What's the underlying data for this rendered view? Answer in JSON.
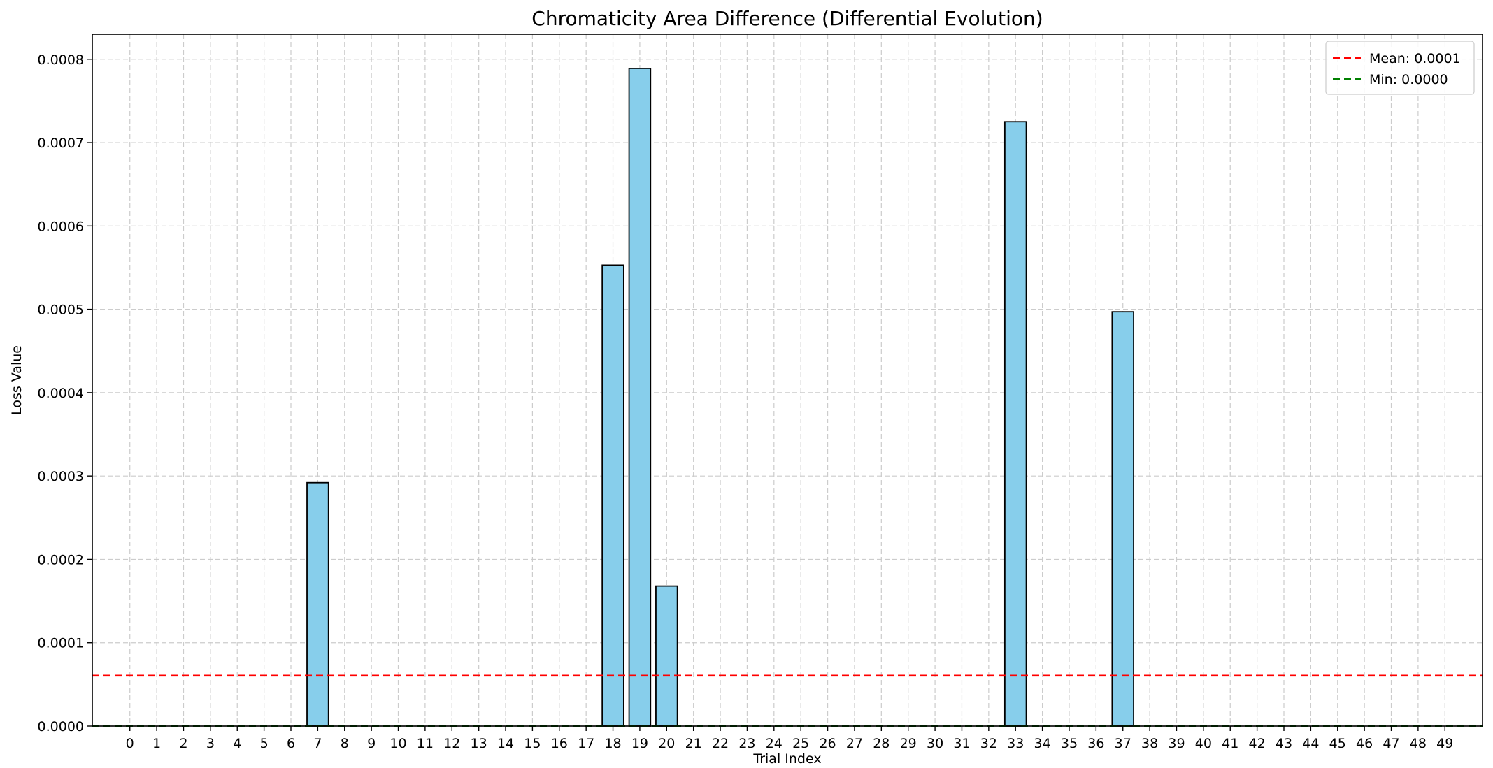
{
  "chart_data": {
    "type": "bar",
    "title": "Chromaticity Area Difference (Differential Evolution)",
    "xlabel": "Trial Index",
    "ylabel": "Loss Value",
    "categories": [
      "0",
      "1",
      "2",
      "3",
      "4",
      "5",
      "6",
      "7",
      "8",
      "9",
      "10",
      "11",
      "12",
      "13",
      "14",
      "15",
      "16",
      "17",
      "18",
      "19",
      "20",
      "21",
      "22",
      "23",
      "24",
      "25",
      "26",
      "27",
      "28",
      "29",
      "30",
      "31",
      "32",
      "33",
      "34",
      "35",
      "36",
      "37",
      "38",
      "39",
      "40",
      "41",
      "42",
      "43",
      "44",
      "45",
      "46",
      "47",
      "48",
      "49"
    ],
    "values": [
      0,
      0,
      0,
      0,
      0,
      0,
      0,
      0.000292,
      0,
      0,
      0,
      0,
      0,
      0,
      0,
      0,
      0,
      0,
      0.000553,
      0.000789,
      0.000168,
      0,
      0,
      0,
      0,
      0,
      0,
      0,
      0,
      0,
      0,
      0,
      0,
      0.000725,
      0,
      0,
      0,
      0.000497,
      0,
      0,
      0,
      0,
      0,
      0,
      0,
      0,
      0,
      0,
      0,
      0
    ],
    "ylim": [
      0,
      0.00083
    ],
    "yticks": [
      {
        "value": 0,
        "label": "0.0000"
      },
      {
        "value": 0.0001,
        "label": "0.0001"
      },
      {
        "value": 0.0002,
        "label": "0.0002"
      },
      {
        "value": 0.0003,
        "label": "0.0003"
      },
      {
        "value": 0.0004,
        "label": "0.0004"
      },
      {
        "value": 0.0005,
        "label": "0.0005"
      },
      {
        "value": 0.0006,
        "label": "0.0006"
      },
      {
        "value": 0.0007,
        "label": "0.0007"
      },
      {
        "value": 0.0008,
        "label": "0.0008"
      }
    ],
    "grid": true,
    "bar_color": "#87ceeb",
    "bar_edge_color": "#000000",
    "reference_lines": [
      {
        "label": "Mean: 0.0001",
        "value": 6.05e-05,
        "color": "#ff0000",
        "style": "dashed"
      },
      {
        "label": "Min: 0.0000",
        "value": 0,
        "color": "#008000",
        "style": "dashed"
      }
    ],
    "legend_position": "top-right"
  }
}
